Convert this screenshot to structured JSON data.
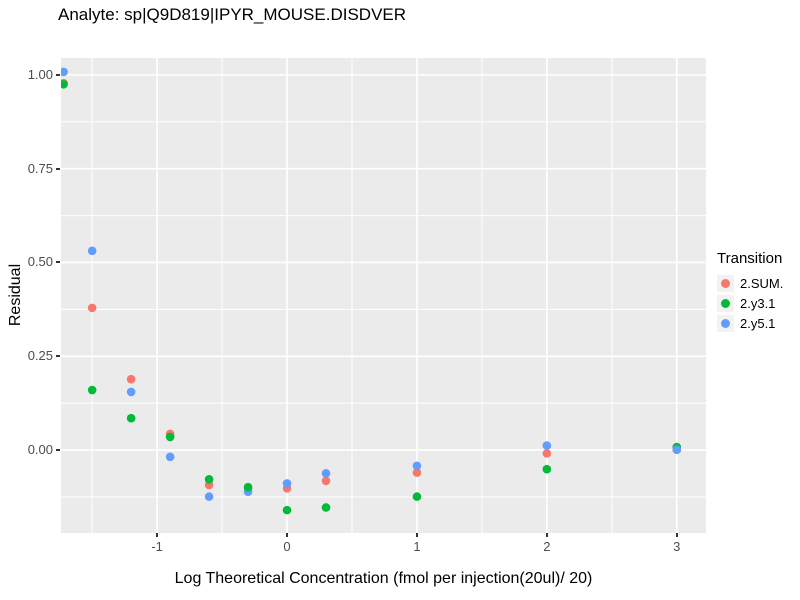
{
  "chart_data": {
    "type": "scatter",
    "title": "Analyte: sp|Q9D819|IPYR_MOUSE.DISDVER",
    "xlabel": "Log Theoretical Concentration (fmol per injection(20ul)/ 20)",
    "ylabel": "Residual",
    "x_domain": [
      -1.74,
      3.225
    ],
    "y_domain": [
      -0.221,
      1.045
    ],
    "x_major_ticks": [
      -1,
      0,
      1,
      2,
      3
    ],
    "x_tick_labels": [
      "-1",
      "0",
      "1",
      "2",
      "3"
    ],
    "x_minor_ticks": [
      -1.5,
      -0.5,
      0.5,
      1.5,
      2.5
    ],
    "y_major_ticks": [
      0,
      0.25,
      0.5,
      0.75,
      1
    ],
    "y_tick_labels": [
      "0.00",
      "0.25",
      "0.50",
      "0.75",
      "1.00"
    ],
    "y_minor_ticks": [
      -0.125,
      0.125,
      0.375,
      0.625,
      0.875
    ],
    "grid": true,
    "panel_bg": "#EBEBEB",
    "grid_color": "#FFFFFF",
    "point_radius": 4.3,
    "legend": {
      "title": "Transition",
      "position": "right",
      "entries": [
        {
          "label": "2.SUM.",
          "color": "#F8766D"
        },
        {
          "label": "2.y3.1",
          "color": "#00BA38"
        },
        {
          "label": "2.y5.1",
          "color": "#619CFF"
        }
      ]
    },
    "points": [
      {
        "x": -1.72,
        "series": "2.SUM.",
        "y": 0.978
      },
      {
        "x": -1.72,
        "series": "2.y3.1",
        "y": 0.975
      },
      {
        "x": -1.72,
        "series": "2.y5.1",
        "y": 1.008
      },
      {
        "x": -1.5,
        "series": "2.SUM.",
        "y": 0.379
      },
      {
        "x": -1.5,
        "series": "2.y3.1",
        "y": 0.16
      },
      {
        "x": -1.5,
        "series": "2.y5.1",
        "y": 0.531
      },
      {
        "x": -1.2,
        "series": "2.SUM.",
        "y": 0.189
      },
      {
        "x": -1.2,
        "series": "2.y3.1",
        "y": 0.085
      },
      {
        "x": -1.2,
        "series": "2.y5.1",
        "y": 0.155
      },
      {
        "x": -0.9,
        "series": "2.SUM.",
        "y": 0.043
      },
      {
        "x": -0.9,
        "series": "2.y3.1",
        "y": 0.035
      },
      {
        "x": -0.9,
        "series": "2.y5.1",
        "y": -0.018
      },
      {
        "x": -0.6,
        "series": "2.SUM.",
        "y": -0.093
      },
      {
        "x": -0.6,
        "series": "2.y3.1",
        "y": -0.078
      },
      {
        "x": -0.6,
        "series": "2.y5.1",
        "y": -0.124
      },
      {
        "x": -0.3,
        "series": "2.SUM.",
        "y": -0.102
      },
      {
        "x": -0.3,
        "series": "2.y5.1",
        "y": -0.111
      },
      {
        "x": -0.3,
        "series": "2.y3.1",
        "y": -0.099
      },
      {
        "x": 0,
        "series": "2.y3.1",
        "y": -0.16
      },
      {
        "x": 0,
        "series": "2.SUM.",
        "y": -0.102
      },
      {
        "x": 0,
        "series": "2.y5.1",
        "y": -0.089
      },
      {
        "x": 0.3,
        "series": "2.y3.1",
        "y": -0.153
      },
      {
        "x": 0.3,
        "series": "2.SUM.",
        "y": -0.082
      },
      {
        "x": 0.3,
        "series": "2.y5.1",
        "y": -0.062
      },
      {
        "x": 1,
        "series": "2.y3.1",
        "y": -0.124
      },
      {
        "x": 1,
        "series": "2.SUM.",
        "y": -0.06
      },
      {
        "x": 1,
        "series": "2.y5.1",
        "y": -0.042
      },
      {
        "x": 2,
        "series": "2.y3.1",
        "y": -0.051
      },
      {
        "x": 2,
        "series": "2.SUM.",
        "y": -0.009
      },
      {
        "x": 2,
        "series": "2.y5.1",
        "y": 0.012
      },
      {
        "x": 3,
        "series": "2.SUM.",
        "y": 0.001
      },
      {
        "x": 3,
        "series": "2.y3.1",
        "y": 0.008
      },
      {
        "x": 3,
        "series": "2.y5.1",
        "y": 0.001
      }
    ]
  }
}
